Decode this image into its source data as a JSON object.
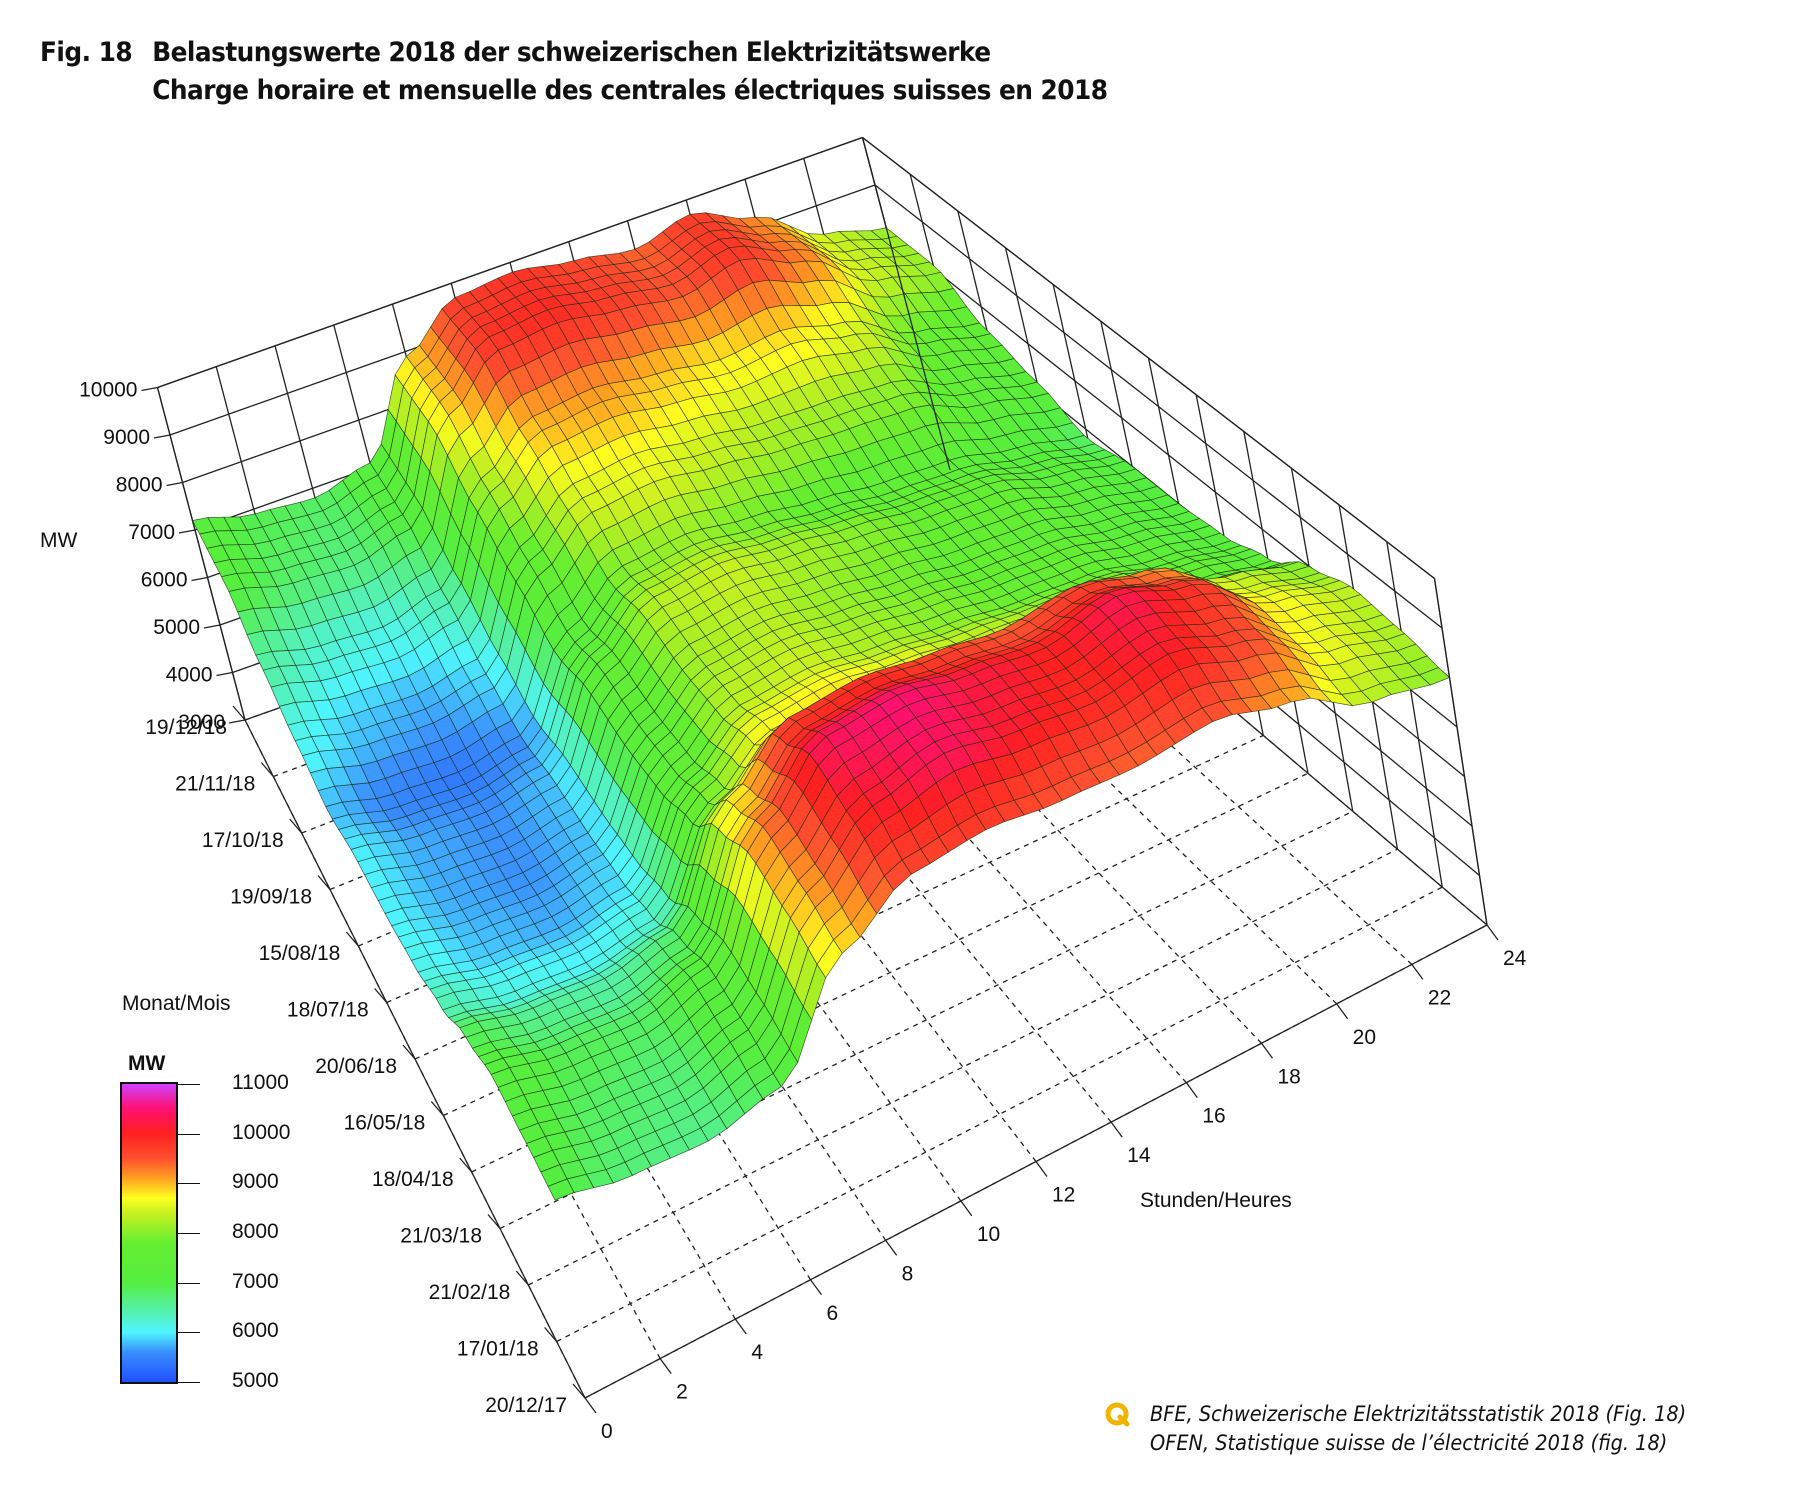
{
  "header": {
    "fig_label": "Fig. 18",
    "title_de": "Belastungswerte 2018 der schweizerischen Elektrizitätswerke",
    "title_fr": "Charge horaire et mensuelle des centrales électriques suisses en 2018"
  },
  "source": {
    "icon": "source-q-icon",
    "line_de": "BFE, Schweizerische Elektrizitätsstatistik 2018 (Fig. 18)",
    "line_fr": "OFEN, Statistique suisse de l’électricité 2018 (fig. 18)"
  },
  "colorbar": {
    "title": "MW",
    "ticks": [
      "11000",
      "10000",
      "9000",
      "8000",
      "7000",
      "6000",
      "5000"
    ],
    "range": [
      5000,
      11000
    ],
    "stops": [
      {
        "v": 5000,
        "color": "#1f4fff"
      },
      {
        "v": 5600,
        "color": "#3a8fff"
      },
      {
        "v": 6000,
        "color": "#4ff5ff"
      },
      {
        "v": 6500,
        "color": "#55f0a0"
      },
      {
        "v": 7000,
        "color": "#55ee40"
      },
      {
        "v": 7800,
        "color": "#66ee30"
      },
      {
        "v": 8400,
        "color": "#c8f020"
      },
      {
        "v": 8700,
        "color": "#ffff20"
      },
      {
        "v": 9100,
        "color": "#ffa020"
      },
      {
        "v": 9500,
        "color": "#ff5030"
      },
      {
        "v": 10000,
        "color": "#ff2020"
      },
      {
        "v": 10500,
        "color": "#ff1070"
      },
      {
        "v": 11000,
        "color": "#d040ff"
      }
    ]
  },
  "chart_data": {
    "type": "surface3d",
    "title": "Belastungswerte 2018 der schweizerischen Elektrizitätswerke / Charge horaire et mensuelle des centrales électriques suisses en 2018",
    "zlabel": "MW",
    "ylabel": "Monat/Mois",
    "xlabel": "Stunden/Heures",
    "zlim": [
      3000,
      10000
    ],
    "z_ticks": [
      "3000",
      "4000",
      "5000",
      "6000",
      "7000",
      "8000",
      "9000",
      "10000"
    ],
    "x_ticks": [
      "0",
      "2",
      "4",
      "6",
      "8",
      "10",
      "12",
      "14",
      "16",
      "18",
      "20",
      "22",
      "24"
    ],
    "xlim": [
      0,
      24
    ],
    "y_ticks": [
      "20/12/17",
      "17/01/18",
      "21/02/18",
      "21/03/18",
      "18/04/18",
      "16/05/18",
      "20/06/18",
      "18/07/18",
      "15/08/18",
      "19/09/18",
      "17/10/18",
      "21/11/18",
      "19/12/18"
    ],
    "grid": true,
    "dates": [
      "20/12/17",
      "17/01/18",
      "21/02/18",
      "21/03/18",
      "18/04/18",
      "16/05/18",
      "20/06/18",
      "18/07/18",
      "15/08/18",
      "19/09/18",
      "17/10/18",
      "21/11/18",
      "19/12/18"
    ],
    "hours": [
      0,
      2,
      4,
      6,
      8,
      10,
      12,
      14,
      16,
      18,
      20,
      22,
      24
    ],
    "load_mw": [
      [
        7000,
        6700,
        6600,
        6900,
        8800,
        9600,
        9700,
        9500,
        9400,
        9500,
        9100,
        8300,
        8000
      ],
      [
        7100,
        6800,
        6700,
        7100,
        9100,
        10100,
        10400,
        10100,
        9900,
        10100,
        9600,
        8600,
        8200
      ],
      [
        7200,
        6900,
        6800,
        7200,
        9300,
        10400,
        10500,
        10200,
        10000,
        10300,
        9800,
        8700,
        8300
      ],
      [
        6900,
        6600,
        6500,
        6800,
        8800,
        9800,
        9900,
        9700,
        9500,
        9700,
        9300,
        8400,
        8000
      ],
      [
        6400,
        6100,
        6000,
        6200,
        7900,
        8700,
        8800,
        8600,
        8400,
        8300,
        8200,
        7700,
        7400
      ],
      [
        6100,
        5800,
        5700,
        5900,
        7500,
        8300,
        8400,
        8200,
        8000,
        7800,
        7700,
        7400,
        7100
      ],
      [
        6000,
        5700,
        5600,
        5800,
        7400,
        8200,
        8300,
        8100,
        7900,
        7700,
        7600,
        7300,
        7000
      ],
      [
        6000,
        5700,
        5600,
        5800,
        7500,
        8300,
        8400,
        8200,
        8000,
        7800,
        7700,
        7300,
        7000
      ],
      [
        5800,
        5500,
        5400,
        5600,
        7200,
        8000,
        8100,
        7900,
        7700,
        7500,
        7400,
        7100,
        6800
      ],
      [
        6100,
        5800,
        5700,
        5900,
        7700,
        8500,
        8600,
        8400,
        8200,
        8100,
        8000,
        7500,
        7200
      ],
      [
        6500,
        6200,
        6100,
        6400,
        8200,
        9000,
        9100,
        8900,
        8700,
        8800,
        8500,
        7800,
        7500
      ],
      [
        7100,
        6800,
        6700,
        7000,
        8900,
        9800,
        9900,
        9700,
        9500,
        9800,
        9300,
        8400,
        8100
      ],
      [
        7200,
        6900,
        6800,
        7100,
        8900,
        9700,
        9800,
        9600,
        9400,
        9700,
        9200,
        8400,
        8100
      ]
    ]
  }
}
